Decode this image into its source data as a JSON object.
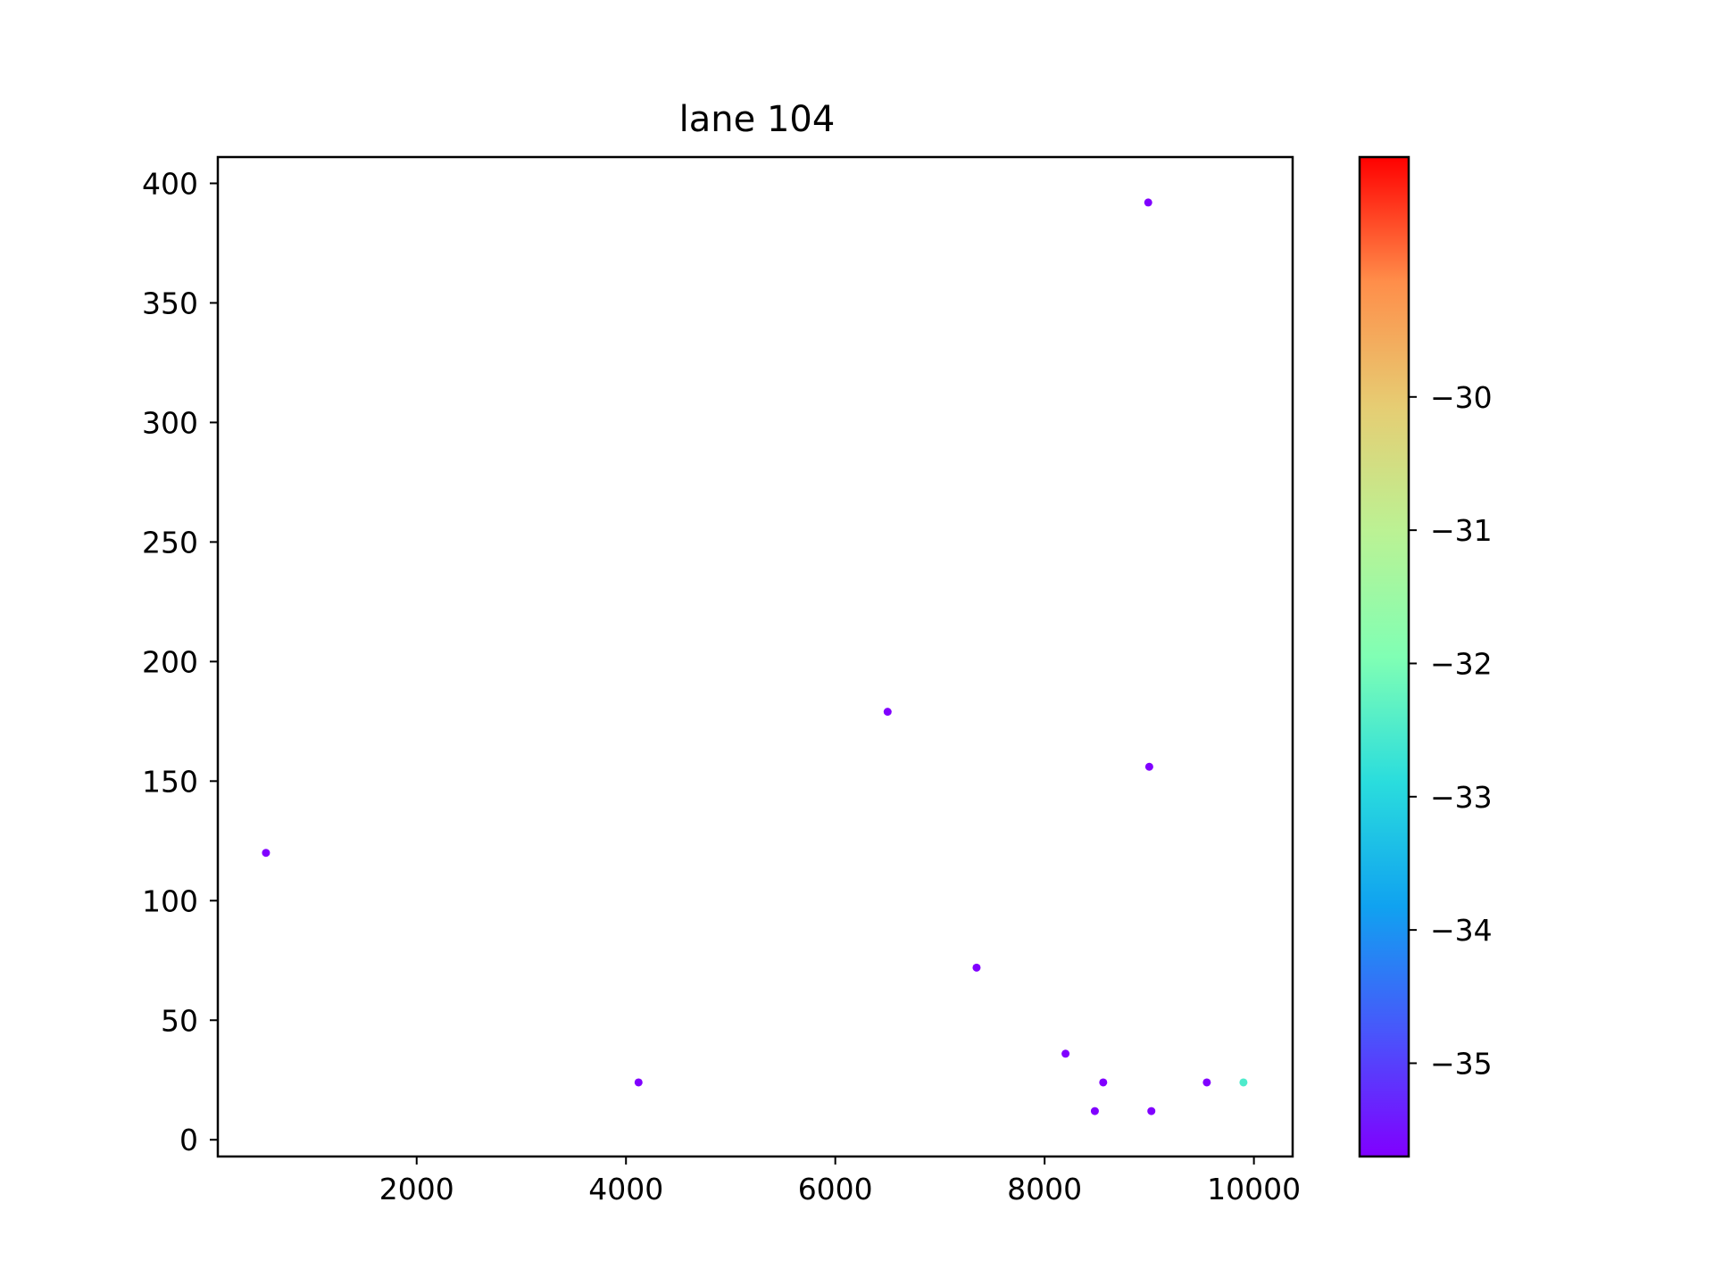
{
  "chart_data": {
    "type": "scatter",
    "title": "lane 104",
    "xlabel": "",
    "ylabel": "",
    "xlim": [
      100,
      10370
    ],
    "ylim": [
      -7,
      411
    ],
    "xticks": [
      2000,
      4000,
      6000,
      8000,
      10000
    ],
    "xtick_labels": [
      "2000",
      "4000",
      "6000",
      "8000",
      "10000"
    ],
    "yticks": [
      0,
      50,
      100,
      150,
      200,
      250,
      300,
      350,
      400
    ],
    "ytick_labels": [
      "0",
      "50",
      "100",
      "150",
      "200",
      "250",
      "300",
      "350",
      "400"
    ],
    "grid": false,
    "points": [
      {
        "x": 560,
        "y": 120,
        "c": -35.7
      },
      {
        "x": 4120,
        "y": 24,
        "c": -35.7
      },
      {
        "x": 6500,
        "y": 179,
        "c": -35.7
      },
      {
        "x": 7350,
        "y": 72,
        "c": -35.7
      },
      {
        "x": 8200,
        "y": 36,
        "c": -35.7
      },
      {
        "x": 8480,
        "y": 12,
        "c": -35.7
      },
      {
        "x": 8560,
        "y": 24,
        "c": -35.7
      },
      {
        "x": 8990,
        "y": 392,
        "c": -35.7
      },
      {
        "x": 9000,
        "y": 156,
        "c": -35.7
      },
      {
        "x": 9020,
        "y": 12,
        "c": -35.7
      },
      {
        "x": 9550,
        "y": 24,
        "c": -35.7
      },
      {
        "x": 9900,
        "y": 24,
        "c": -32.5
      }
    ],
    "colorbar": {
      "colormap": "rainbow",
      "range": [
        -35.7,
        -28.2
      ],
      "ticks": [
        -35,
        -34,
        -33,
        -32,
        -31,
        -30
      ],
      "tick_labels": [
        "−35",
        "−34",
        "−33",
        "−32",
        "−31",
        "−30"
      ]
    }
  }
}
